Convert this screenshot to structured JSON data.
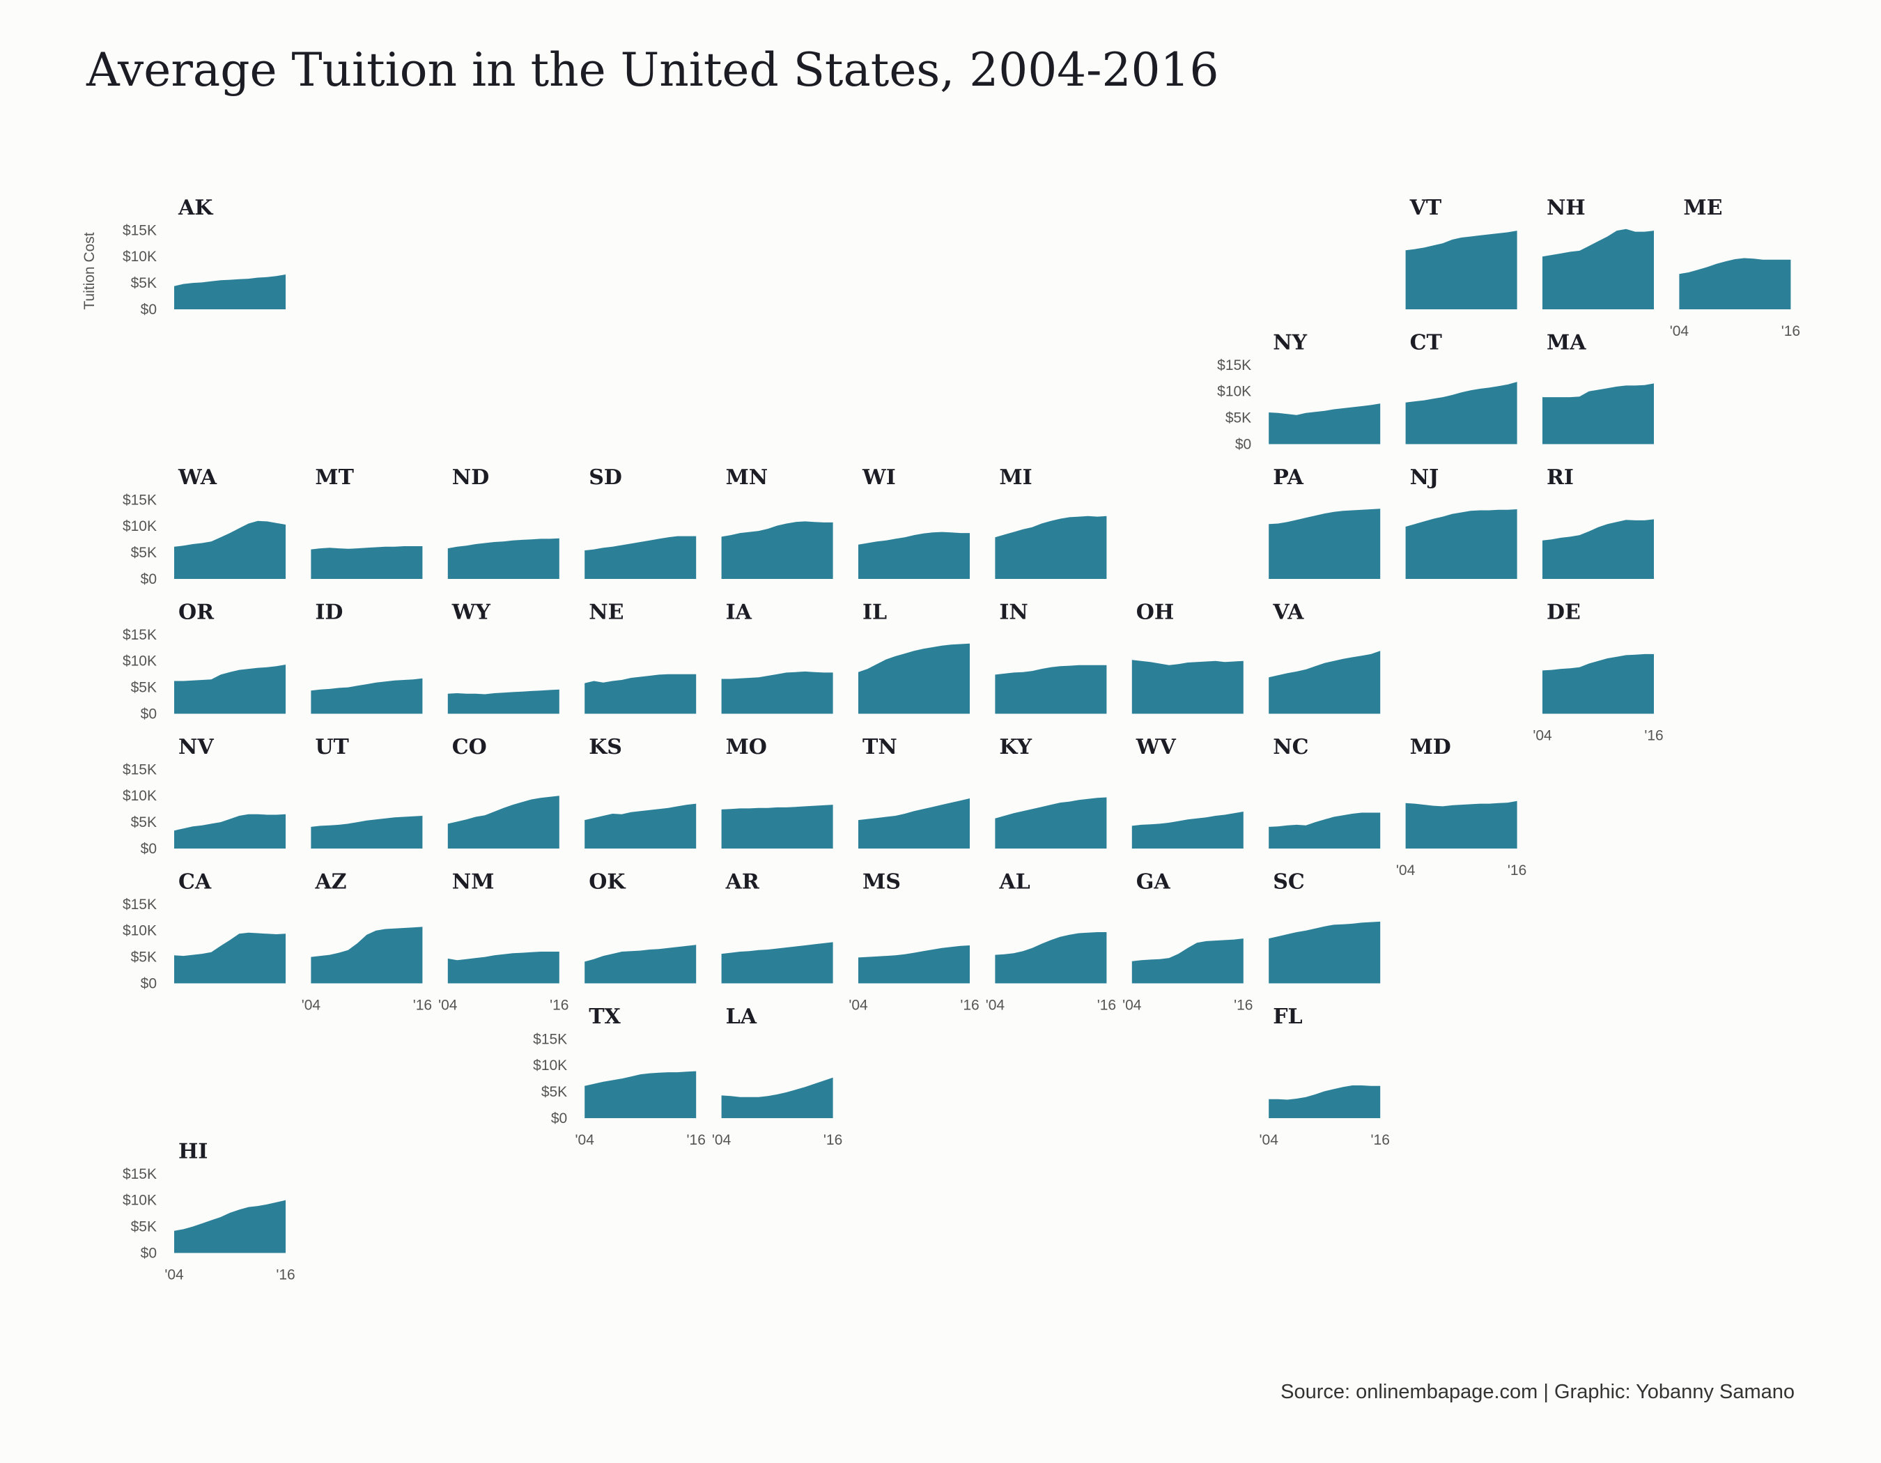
{
  "title": "Average Tuition in the United States, 2004-2016",
  "caption": "Source: onlinembapage.com | Graphic: Yobanny Samano",
  "colors": {
    "area": "#2b8098",
    "background": "#fcfcfb",
    "text": "#1c1c24"
  },
  "chart_data": {
    "type": "area",
    "layout": "geofacet small multiples",
    "x": [
      "2004",
      "2005",
      "2006",
      "2007",
      "2008",
      "2009",
      "2010",
      "2011",
      "2012",
      "2013",
      "2014",
      "2015",
      "2016"
    ],
    "x_tick_labels": [
      "'04",
      "'16"
    ],
    "ylabel": "Tuition Cost",
    "y_tick_labels": [
      "$0",
      "$5K",
      "$10K",
      "$15K"
    ],
    "y_ticks": [
      0,
      5000,
      10000,
      15000
    ],
    "ylim": [
      0,
      16500
    ],
    "series": [
      {
        "name": "AK",
        "row": 0,
        "col": 0,
        "values": [
          4400,
          4800,
          5000,
          5100,
          5300,
          5500,
          5600,
          5700,
          5800,
          6000,
          6100,
          6300,
          6600
        ]
      },
      {
        "name": "VT",
        "row": 0,
        "col": 9,
        "values": [
          11200,
          11400,
          11700,
          12100,
          12500,
          13200,
          13600,
          13800,
          14000,
          14200,
          14400,
          14600,
          14900
        ]
      },
      {
        "name": "NH",
        "row": 0,
        "col": 10,
        "values": [
          10000,
          10300,
          10600,
          10900,
          11100,
          12000,
          12900,
          13800,
          14900,
          15200,
          14700,
          14700,
          14900
        ]
      },
      {
        "name": "ME",
        "row": 0,
        "col": 11,
        "values": [
          6700,
          7000,
          7500,
          8000,
          8600,
          9100,
          9500,
          9700,
          9600,
          9400,
          9400,
          9400,
          9400
        ]
      },
      {
        "name": "NY",
        "row": 1,
        "col": 8,
        "values": [
          6000,
          5900,
          5700,
          5500,
          5900,
          6100,
          6300,
          6600,
          6800,
          7000,
          7200,
          7400,
          7700
        ]
      },
      {
        "name": "CT",
        "row": 1,
        "col": 9,
        "values": [
          7900,
          8100,
          8300,
          8600,
          8900,
          9300,
          9800,
          10200,
          10500,
          10700,
          11000,
          11300,
          11800
        ]
      },
      {
        "name": "MA",
        "row": 1,
        "col": 10,
        "values": [
          8900,
          8900,
          8900,
          8900,
          9000,
          10000,
          10300,
          10600,
          10900,
          11100,
          11100,
          11200,
          11500
        ]
      },
      {
        "name": "WA",
        "row": 2,
        "col": 0,
        "values": [
          6100,
          6300,
          6600,
          6800,
          7100,
          7900,
          8700,
          9600,
          10500,
          11000,
          10900,
          10600,
          10300
        ]
      },
      {
        "name": "MT",
        "row": 2,
        "col": 1,
        "values": [
          5600,
          5800,
          5900,
          5800,
          5700,
          5800,
          5900,
          6000,
          6100,
          6100,
          6200,
          6200,
          6200
        ]
      },
      {
        "name": "ND",
        "row": 2,
        "col": 2,
        "values": [
          5800,
          6100,
          6300,
          6600,
          6800,
          7000,
          7100,
          7300,
          7400,
          7500,
          7600,
          7600,
          7700
        ]
      },
      {
        "name": "SD",
        "row": 2,
        "col": 3,
        "values": [
          5400,
          5600,
          5900,
          6100,
          6400,
          6700,
          7000,
          7300,
          7600,
          7900,
          8100,
          8100,
          8100
        ]
      },
      {
        "name": "MN",
        "row": 2,
        "col": 4,
        "values": [
          8000,
          8300,
          8700,
          8900,
          9100,
          9500,
          10100,
          10500,
          10800,
          10900,
          10800,
          10700,
          10700
        ]
      },
      {
        "name": "WI",
        "row": 2,
        "col": 5,
        "values": [
          6500,
          6800,
          7100,
          7300,
          7600,
          7900,
          8300,
          8600,
          8800,
          8900,
          8800,
          8700,
          8700
        ]
      },
      {
        "name": "MI",
        "row": 2,
        "col": 6,
        "values": [
          7900,
          8400,
          8900,
          9400,
          9800,
          10500,
          11000,
          11400,
          11700,
          11800,
          11900,
          11800,
          11900
        ]
      },
      {
        "name": "PA",
        "row": 2,
        "col": 8,
        "values": [
          10400,
          10500,
          10800,
          11200,
          11600,
          12000,
          12400,
          12700,
          12900,
          13000,
          13100,
          13200,
          13300
        ]
      },
      {
        "name": "NJ",
        "row": 2,
        "col": 9,
        "values": [
          9900,
          10400,
          10900,
          11400,
          11800,
          12300,
          12600,
          12900,
          13000,
          13000,
          13100,
          13100,
          13200
        ]
      },
      {
        "name": "RI",
        "row": 2,
        "col": 10,
        "values": [
          7300,
          7500,
          7800,
          8000,
          8300,
          9000,
          9800,
          10400,
          10800,
          11200,
          11100,
          11100,
          11300
        ]
      },
      {
        "name": "OR",
        "row": 3,
        "col": 0,
        "values": [
          6200,
          6200,
          6300,
          6400,
          6500,
          7400,
          7900,
          8300,
          8500,
          8700,
          8800,
          9000,
          9300
        ]
      },
      {
        "name": "ID",
        "row": 3,
        "col": 1,
        "values": [
          4400,
          4600,
          4700,
          4900,
          5000,
          5300,
          5600,
          5900,
          6100,
          6300,
          6400,
          6500,
          6700
        ]
      },
      {
        "name": "WY",
        "row": 3,
        "col": 2,
        "values": [
          3800,
          3900,
          3800,
          3800,
          3700,
          3900,
          4000,
          4100,
          4200,
          4300,
          4400,
          4500,
          4600
        ]
      },
      {
        "name": "NE",
        "row": 3,
        "col": 3,
        "values": [
          5800,
          6200,
          5900,
          6200,
          6400,
          6800,
          7000,
          7200,
          7400,
          7500,
          7500,
          7500,
          7500
        ]
      },
      {
        "name": "IA",
        "row": 3,
        "col": 4,
        "values": [
          6600,
          6600,
          6700,
          6800,
          6900,
          7200,
          7500,
          7800,
          7900,
          8000,
          7900,
          7800,
          7800
        ]
      },
      {
        "name": "IL",
        "row": 3,
        "col": 5,
        "values": [
          7900,
          8500,
          9400,
          10300,
          10900,
          11400,
          11900,
          12300,
          12600,
          12900,
          13100,
          13200,
          13300
        ]
      },
      {
        "name": "IN",
        "row": 3,
        "col": 6,
        "values": [
          7400,
          7600,
          7800,
          7900,
          8100,
          8500,
          8800,
          9000,
          9100,
          9200,
          9200,
          9200,
          9200
        ]
      },
      {
        "name": "OH",
        "row": 3,
        "col": 7,
        "values": [
          10200,
          10000,
          9800,
          9500,
          9200,
          9400,
          9700,
          9800,
          9900,
          10000,
          9800,
          9900,
          10000
        ]
      },
      {
        "name": "VA",
        "row": 3,
        "col": 8,
        "values": [
          6900,
          7300,
          7700,
          8000,
          8400,
          9000,
          9600,
          10000,
          10400,
          10700,
          11000,
          11300,
          11900
        ]
      },
      {
        "name": "DE",
        "row": 3,
        "col": 10,
        "values": [
          8200,
          8300,
          8500,
          8600,
          8800,
          9500,
          10000,
          10500,
          10800,
          11100,
          11200,
          11300,
          11300
        ]
      },
      {
        "name": "NV",
        "row": 4,
        "col": 0,
        "values": [
          3400,
          3800,
          4200,
          4400,
          4700,
          5000,
          5600,
          6200,
          6500,
          6500,
          6400,
          6400,
          6500
        ]
      },
      {
        "name": "UT",
        "row": 4,
        "col": 1,
        "values": [
          4100,
          4300,
          4400,
          4500,
          4700,
          5000,
          5300,
          5500,
          5700,
          5900,
          6000,
          6100,
          6200
        ]
      },
      {
        "name": "CO",
        "row": 4,
        "col": 2,
        "values": [
          4700,
          5100,
          5500,
          6000,
          6300,
          7000,
          7700,
          8300,
          8800,
          9300,
          9600,
          9800,
          10000
        ]
      },
      {
        "name": "KS",
        "row": 4,
        "col": 3,
        "values": [
          5400,
          5800,
          6200,
          6600,
          6500,
          6900,
          7100,
          7300,
          7500,
          7700,
          8000,
          8300,
          8500
        ]
      },
      {
        "name": "MO",
        "row": 4,
        "col": 4,
        "values": [
          7400,
          7500,
          7600,
          7600,
          7700,
          7700,
          7800,
          7800,
          7900,
          8000,
          8100,
          8200,
          8300
        ]
      },
      {
        "name": "TN",
        "row": 4,
        "col": 5,
        "values": [
          5400,
          5600,
          5800,
          6000,
          6200,
          6600,
          7100,
          7500,
          7900,
          8300,
          8700,
          9100,
          9500
        ]
      },
      {
        "name": "KY",
        "row": 4,
        "col": 6,
        "values": [
          5700,
          6200,
          6700,
          7100,
          7500,
          7900,
          8300,
          8700,
          8900,
          9200,
          9400,
          9600,
          9700
        ]
      },
      {
        "name": "WV",
        "row": 4,
        "col": 7,
        "values": [
          4300,
          4500,
          4600,
          4700,
          4900,
          5200,
          5500,
          5700,
          5900,
          6200,
          6400,
          6700,
          7000
        ]
      },
      {
        "name": "NC",
        "row": 4,
        "col": 8,
        "values": [
          4100,
          4200,
          4400,
          4500,
          4400,
          5000,
          5500,
          6000,
          6300,
          6600,
          6800,
          6800,
          6800
        ]
      },
      {
        "name": "MD",
        "row": 4,
        "col": 9,
        "values": [
          8600,
          8500,
          8300,
          8100,
          8000,
          8200,
          8300,
          8400,
          8500,
          8500,
          8600,
          8700,
          9000
        ]
      },
      {
        "name": "CA",
        "row": 5,
        "col": 0,
        "values": [
          5300,
          5200,
          5400,
          5600,
          5900,
          7100,
          8200,
          9400,
          9600,
          9500,
          9400,
          9300,
          9400
        ]
      },
      {
        "name": "AZ",
        "row": 5,
        "col": 1,
        "values": [
          5000,
          5200,
          5400,
          5800,
          6300,
          7600,
          9200,
          10000,
          10300,
          10400,
          10500,
          10600,
          10700
        ]
      },
      {
        "name": "NM",
        "row": 5,
        "col": 2,
        "values": [
          4700,
          4400,
          4600,
          4800,
          5000,
          5300,
          5500,
          5700,
          5800,
          5900,
          6000,
          6000,
          6000
        ]
      },
      {
        "name": "OK",
        "row": 5,
        "col": 3,
        "values": [
          4100,
          4600,
          5200,
          5600,
          6000,
          6100,
          6200,
          6400,
          6500,
          6700,
          6900,
          7100,
          7300
        ]
      },
      {
        "name": "AR",
        "row": 5,
        "col": 4,
        "values": [
          5600,
          5800,
          6000,
          6100,
          6300,
          6400,
          6600,
          6800,
          7000,
          7200,
          7400,
          7600,
          7800
        ]
      },
      {
        "name": "MS",
        "row": 5,
        "col": 5,
        "values": [
          4900,
          5000,
          5100,
          5200,
          5300,
          5500,
          5800,
          6100,
          6400,
          6700,
          6900,
          7100,
          7200
        ]
      },
      {
        "name": "AL",
        "row": 5,
        "col": 6,
        "values": [
          5400,
          5500,
          5700,
          6100,
          6700,
          7500,
          8200,
          8800,
          9200,
          9500,
          9600,
          9700,
          9700
        ]
      },
      {
        "name": "GA",
        "row": 5,
        "col": 7,
        "values": [
          4200,
          4400,
          4500,
          4600,
          4800,
          5600,
          6700,
          7700,
          8000,
          8100,
          8200,
          8300,
          8500
        ]
      },
      {
        "name": "SC",
        "row": 5,
        "col": 8,
        "values": [
          8500,
          8900,
          9300,
          9700,
          10000,
          10400,
          10800,
          11100,
          11200,
          11300,
          11500,
          11600,
          11700
        ]
      },
      {
        "name": "TX",
        "row": 6,
        "col": 3,
        "values": [
          6100,
          6500,
          6900,
          7200,
          7500,
          7900,
          8300,
          8500,
          8600,
          8700,
          8700,
          8800,
          8900
        ]
      },
      {
        "name": "LA",
        "row": 6,
        "col": 4,
        "values": [
          4300,
          4200,
          4000,
          4000,
          4000,
          4200,
          4500,
          4900,
          5400,
          5900,
          6500,
          7100,
          7700
        ]
      },
      {
        "name": "FL",
        "row": 6,
        "col": 8,
        "values": [
          3600,
          3600,
          3500,
          3700,
          4000,
          4500,
          5100,
          5500,
          5900,
          6200,
          6200,
          6100,
          6100
        ]
      },
      {
        "name": "HI",
        "row": 7,
        "col": 0,
        "values": [
          4200,
          4500,
          5000,
          5600,
          6200,
          6800,
          7600,
          8200,
          8700,
          8900,
          9200,
          9600,
          10000
        ]
      }
    ],
    "x_tick_panels": [
      "ME",
      "DE",
      "MD",
      "AZ",
      "NM",
      "MS",
      "AL",
      "GA",
      "TX",
      "LA",
      "FL",
      "HI"
    ],
    "y_tick_panels": [
      "AK",
      "NY",
      "WA",
      "OR",
      "NV",
      "CA",
      "TX",
      "HI"
    ],
    "ylabel_panel": "AK"
  }
}
